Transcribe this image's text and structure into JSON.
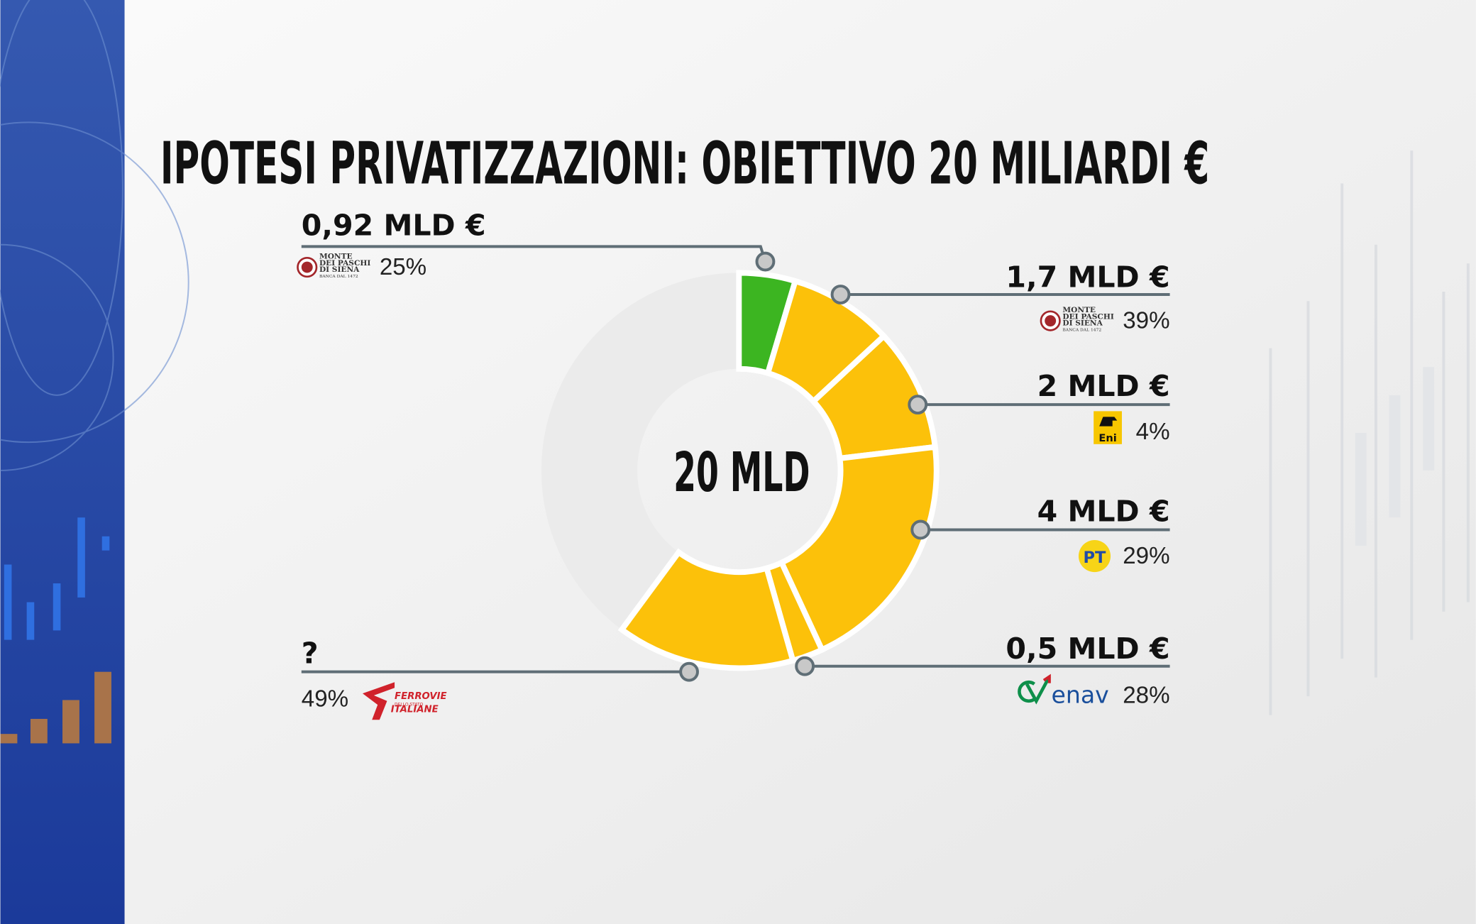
{
  "chart_data": {
    "type": "pie",
    "title": "IPOTESI PRIVATIZZAZIONI: OBIETTIVO 20 MILIARDI €",
    "center": {
      "value": 20,
      "label": "20 MLD"
    },
    "values": [
      0.92,
      1.7,
      2,
      4,
      0.5,
      2.9
    ],
    "value_labels": [
      "0,92 MLD €",
      "1,7 MLD €",
      "2 MLD €",
      "4 MLD €",
      "0,5 MLD €",
      "?"
    ],
    "colors": [
      "#3cb521",
      "#fcc10a",
      "#fcc10a",
      "#fcc10a",
      "#fcc10a",
      "#fcc10a"
    ],
    "track_color": "#ebebeb",
    "stakes": [
      "25%",
      "39%",
      "4%",
      "29%",
      "28%",
      "49%"
    ],
    "logos": [
      [
        "MONTE",
        "DEI PASCHI",
        "DI SIENA",
        "BANCA DAL 1472"
      ],
      [
        "MONTE",
        "DEI PASCHI",
        "DI SIENA",
        "BANCA DAL 1472"
      ],
      [
        "Eni"
      ],
      [
        "PT"
      ],
      [
        "enav"
      ],
      [
        "FERROVIE",
        "DELLO STATO",
        "ITALIANE"
      ]
    ]
  }
}
